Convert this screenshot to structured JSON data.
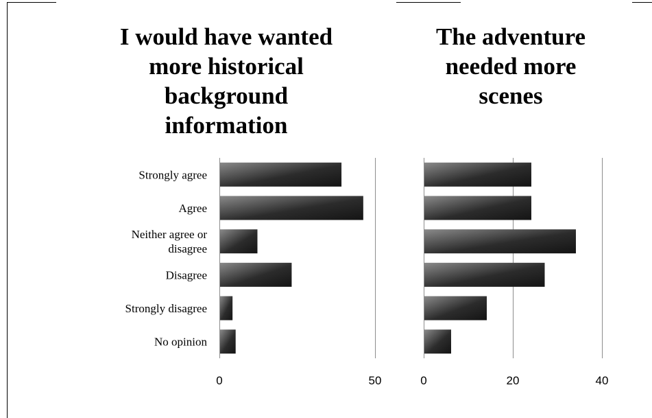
{
  "chart_data": [
    {
      "type": "bar",
      "orientation": "horizontal",
      "title": "I would have wanted\nmore historical\nbackground\ninformation",
      "categories": [
        "Strongly agree",
        "Agree",
        "Neither agree or\ndisagree",
        "Disagree",
        "Strongly disagree",
        "No opinion"
      ],
      "values": [
        39,
        46,
        12,
        23,
        4,
        5
      ],
      "xlim": [
        0,
        50
      ],
      "xticks": [
        0,
        50
      ],
      "grid": "vertical-major",
      "legend": "none",
      "bar_color": "#3a3a3a"
    },
    {
      "type": "bar",
      "orientation": "horizontal",
      "title": "The adventure\nneeded more\nscenes",
      "categories": [
        "Strongly agree",
        "Agree",
        "Neither agree or\ndisagree",
        "Disagree",
        "Strongly disagree",
        "No opinion"
      ],
      "values": [
        24,
        24,
        34,
        27,
        14,
        6
      ],
      "xlim": [
        0,
        40
      ],
      "xticks": [
        0,
        20,
        40
      ],
      "grid": "vertical-major",
      "legend": "none",
      "bar_color": "#3a3a3a"
    }
  ]
}
